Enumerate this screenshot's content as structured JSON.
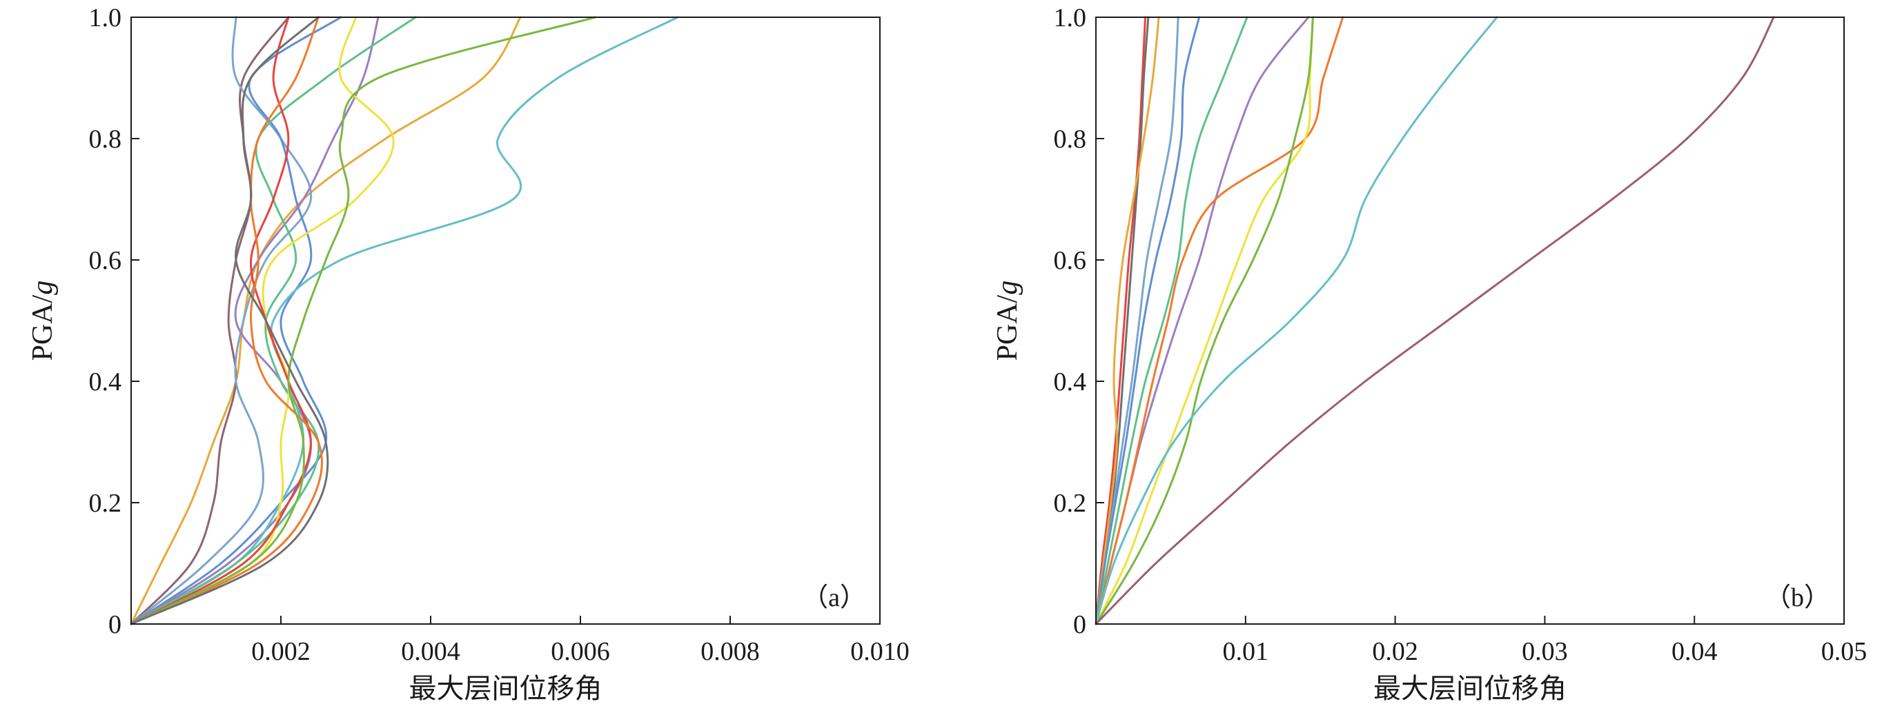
{
  "chart_data": [
    {
      "type": "line",
      "panel_label": "（a）",
      "xlabel": "最大层间位移角",
      "ylabel_main": "PGA/",
      "ylabel_unit": "g",
      "xlim": [
        0,
        0.01
      ],
      "ylim": [
        0,
        1.0
      ],
      "xticks": [
        "0.002",
        "0.004",
        "0.006",
        "0.008",
        "0.010"
      ],
      "yticks": [
        "0",
        "0.2",
        "0.4",
        "0.6",
        "0.8",
        "1.0"
      ],
      "y": [
        0,
        0.1,
        0.2,
        0.3,
        0.4,
        0.5,
        0.6,
        0.7,
        0.8,
        0.9,
        1.0
      ],
      "series": [
        {
          "color": "#e8a93a",
          "x": [
            0,
            0.0004,
            0.0008,
            0.0011,
            0.0014,
            0.0015,
            0.0017,
            0.0023,
            0.0034,
            0.0047,
            0.0052
          ]
        },
        {
          "color": "#8e6470",
          "x": [
            0,
            0.0008,
            0.0011,
            0.0012,
            0.0014,
            0.0013,
            0.0014,
            0.0016,
            0.0015,
            0.0015,
            0.0021
          ]
        },
        {
          "color": "#7ba6cc",
          "x": [
            0,
            0.001,
            0.0017,
            0.0017,
            0.0014,
            0.0015,
            0.0018,
            0.0024,
            0.002,
            0.0014,
            0.0014
          ]
        },
        {
          "color": "#5f8fd0",
          "x": [
            0,
            0.0012,
            0.002,
            0.0026,
            0.0023,
            0.002,
            0.0024,
            0.0022,
            0.002,
            0.0016,
            0.0028
          ]
        },
        {
          "color": "#9b7ec2",
          "x": [
            0,
            0.0013,
            0.0021,
            0.0024,
            0.002,
            0.0014,
            0.0017,
            0.0023,
            0.0027,
            0.0031,
            0.0033
          ]
        },
        {
          "color": "#65bdc9",
          "x": [
            0,
            0.0014,
            0.002,
            0.0023,
            0.0021,
            0.0019,
            0.0028,
            0.0051,
            0.0049,
            0.0057,
            0.0073
          ]
        },
        {
          "color": "#5fc08a",
          "x": [
            0,
            0.0014,
            0.0022,
            0.0025,
            0.002,
            0.0018,
            0.0022,
            0.0019,
            0.0017,
            0.0026,
            0.0038
          ]
        },
        {
          "color": "#f0e23c",
          "x": [
            0,
            0.0016,
            0.002,
            0.002,
            0.0021,
            0.0018,
            0.0019,
            0.003,
            0.0035,
            0.0028,
            0.003
          ]
        },
        {
          "color": "#e8433f",
          "x": [
            0,
            0.0015,
            0.0021,
            0.0024,
            0.0021,
            0.0018,
            0.0016,
            0.0019,
            0.0021,
            0.0019,
            0.0021
          ]
        },
        {
          "color": "#ef7a2e",
          "x": [
            0,
            0.0017,
            0.0024,
            0.0025,
            0.0018,
            0.0016,
            0.0017,
            0.0016,
            0.0017,
            0.0022,
            0.0025
          ]
        },
        {
          "color": "#7ab840",
          "x": [
            0,
            0.0016,
            0.0022,
            0.0023,
            0.0021,
            0.0023,
            0.0026,
            0.0029,
            0.0028,
            0.0033,
            0.0062
          ]
        },
        {
          "color": "#6f6f6f",
          "x": [
            0,
            0.0018,
            0.0025,
            0.0026,
            0.0022,
            0.0018,
            0.0014,
            0.0016,
            0.0015,
            0.0016,
            0.0025
          ]
        }
      ]
    },
    {
      "type": "line",
      "panel_label": "（b）",
      "xlabel": "最大层间位移角",
      "ylabel_main": "PGA/",
      "ylabel_unit": "g",
      "xlim": [
        0,
        0.05
      ],
      "ylim": [
        0,
        1.0
      ],
      "xticks": [
        "0.01",
        "0.02",
        "0.03",
        "0.04",
        "0.05"
      ],
      "yticks": [
        "0",
        "0.2",
        "0.4",
        "0.6",
        "0.8",
        "1.0"
      ],
      "y": [
        0,
        0.1,
        0.2,
        0.3,
        0.4,
        0.5,
        0.6,
        0.7,
        0.8,
        0.9,
        1.0
      ],
      "series": [
        {
          "color": "#e8433f",
          "x": [
            0,
            0.0004,
            0.0009,
            0.0013,
            0.0016,
            0.0019,
            0.0022,
            0.0026,
            0.0029,
            0.0031,
            0.0033
          ]
        },
        {
          "color": "#6f6f6f",
          "x": [
            0,
            0.0005,
            0.0011,
            0.0015,
            0.0018,
            0.0021,
            0.0024,
            0.0027,
            0.003,
            0.0032,
            0.0035
          ]
        },
        {
          "color": "#e8a93a",
          "x": [
            0,
            0.0005,
            0.001,
            0.0014,
            0.0012,
            0.0014,
            0.0018,
            0.0025,
            0.0032,
            0.0038,
            0.0042
          ]
        },
        {
          "color": "#7ba6cc",
          "x": [
            0,
            0.0006,
            0.0012,
            0.0018,
            0.0024,
            0.0029,
            0.0034,
            0.0042,
            0.005,
            0.0053,
            0.0055
          ]
        },
        {
          "color": "#5f8fd0",
          "x": [
            0,
            0.0006,
            0.0013,
            0.002,
            0.0026,
            0.0032,
            0.004,
            0.005,
            0.0057,
            0.0059,
            0.0069
          ]
        },
        {
          "color": "#5fc08a",
          "x": [
            0,
            0.0008,
            0.0016,
            0.0024,
            0.0033,
            0.0045,
            0.0055,
            0.006,
            0.0069,
            0.0085,
            0.0101
          ]
        },
        {
          "color": "#9b7ec2",
          "x": [
            0,
            0.001,
            0.002,
            0.003,
            0.0042,
            0.0055,
            0.0069,
            0.008,
            0.0093,
            0.011,
            0.0142
          ]
        },
        {
          "color": "#ef7a2e",
          "x": [
            0,
            0.001,
            0.002,
            0.0029,
            0.0038,
            0.0048,
            0.0058,
            0.008,
            0.014,
            0.0152,
            0.0165
          ]
        },
        {
          "color": "#f0e23c",
          "x": [
            0,
            0.002,
            0.0035,
            0.005,
            0.0065,
            0.008,
            0.0095,
            0.0112,
            0.014,
            0.0143,
            0.0145
          ]
        },
        {
          "color": "#7ab840",
          "x": [
            0,
            0.0025,
            0.0045,
            0.006,
            0.007,
            0.0085,
            0.0105,
            0.0122,
            0.0133,
            0.0142,
            0.0145
          ]
        },
        {
          "color": "#65bdc9",
          "x": [
            0,
            0.0012,
            0.003,
            0.0052,
            0.0085,
            0.013,
            0.0165,
            0.018,
            0.0205,
            0.0235,
            0.0268
          ]
        },
        {
          "color": "#9e5c73",
          "x": [
            0,
            0.004,
            0.0085,
            0.013,
            0.018,
            0.0235,
            0.029,
            0.0345,
            0.0395,
            0.0432,
            0.0453
          ]
        }
      ]
    }
  ]
}
